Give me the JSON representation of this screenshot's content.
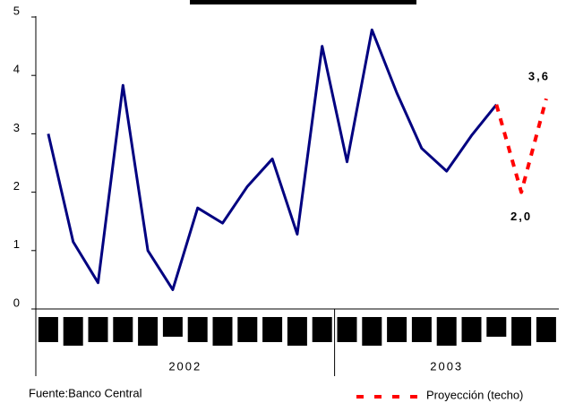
{
  "chart_data": {
    "type": "line",
    "categories": [
      null,
      null,
      null,
      null,
      null,
      null,
      null,
      null,
      null,
      null,
      null,
      null,
      null,
      null,
      null,
      null,
      null,
      null,
      null,
      null,
      null
    ],
    "x_groups": [
      {
        "label": "2002",
        "span": 12
      },
      {
        "label": "2003",
        "span": 9
      }
    ],
    "series": [
      {
        "color": "#000080",
        "values": [
          3.0,
          1.15,
          0.45,
          3.83,
          1.0,
          0.33,
          1.73,
          1.47,
          2.1,
          2.57,
          1.28,
          4.5,
          2.52,
          4.78,
          3.7,
          2.75,
          2.36,
          2.97,
          3.5,
          null,
          null
        ]
      },
      {
        "name": "Proyección (techo)",
        "color": "#ff0000",
        "dashed": true,
        "values": [
          null,
          null,
          null,
          null,
          null,
          null,
          null,
          null,
          null,
          null,
          null,
          null,
          null,
          null,
          null,
          null,
          null,
          null,
          3.5,
          2.0,
          3.6
        ],
        "value_labels": [
          null,
          null,
          null,
          null,
          null,
          null,
          null,
          null,
          null,
          null,
          null,
          null,
          null,
          null,
          null,
          null,
          null,
          null,
          null,
          "2,0",
          "3,6"
        ]
      }
    ],
    "ylim": [
      0,
      5
    ],
    "yticks": [
      0,
      1,
      2,
      3,
      4,
      5
    ],
    "source": "Fuente:Banco Central"
  }
}
